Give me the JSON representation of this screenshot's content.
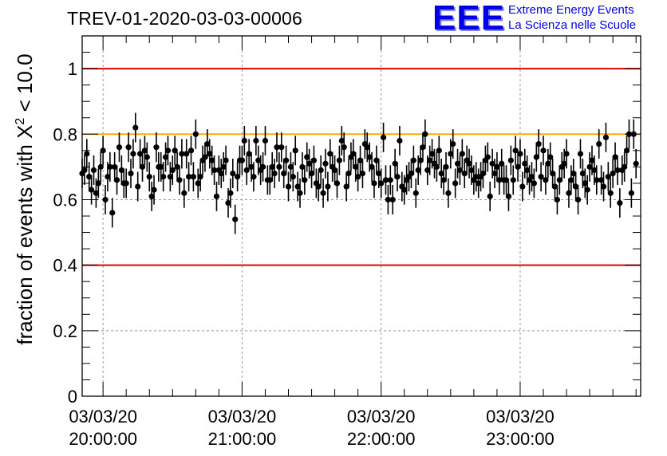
{
  "title": "TREV-01-2020-03-03-00006",
  "logo": {
    "mark": "EEE",
    "line1": "Extreme Energy Events",
    "line2": "La Scienza nelle Scuole",
    "color": "#0000e6"
  },
  "chart_data": {
    "type": "scatter",
    "ylabel_prefix": "fraction of events with ",
    "ylabel_symbol": "X",
    "ylabel_exp": "2",
    "ylabel_suffix": " < 10.0",
    "ylim": [
      0,
      1.1
    ],
    "xlim": [
      "2020-03-03 19:51:00",
      "2020-03-03 23:52:00"
    ],
    "yticks": [
      0,
      0.2,
      0.4,
      0.6,
      0.8,
      1
    ],
    "ytick_labels": [
      "0",
      "0.2",
      "0.4",
      "0.6",
      "0.8",
      "1"
    ],
    "xticks": [
      {
        "date": "03/03/20",
        "time": "20:00:00"
      },
      {
        "date": "03/03/20",
        "time": "21:00:00"
      },
      {
        "date": "03/03/20",
        "time": "22:00:00"
      },
      {
        "date": "03/03/20",
        "time": "23:00:00"
      }
    ],
    "grid": true,
    "reference_lines": [
      {
        "y": 1.0,
        "color": "#e00000"
      },
      {
        "y": 0.8,
        "color": "#ffaa00"
      },
      {
        "y": 0.4,
        "color": "#e00000"
      }
    ],
    "series": [
      {
        "marker_color": "#000000",
        "x_start": "2020-03-03 19:51:00",
        "x_step_seconds": 60,
        "y": [
          0.68,
          0.69,
          0.74,
          0.67,
          0.63,
          0.69,
          0.62,
          0.65,
          0.7,
          0.75,
          0.6,
          0.67,
          0.7,
          0.56,
          0.7,
          0.66,
          0.76,
          0.69,
          0.65,
          0.65,
          0.76,
          0.68,
          0.74,
          0.82,
          0.64,
          0.74,
          0.7,
          0.75,
          0.73,
          0.67,
          0.61,
          0.63,
          0.76,
          0.7,
          0.7,
          0.67,
          0.73,
          0.75,
          0.67,
          0.69,
          0.75,
          0.7,
          0.66,
          0.74,
          0.62,
          0.74,
          0.67,
          0.75,
          0.67,
          0.8,
          0.65,
          0.67,
          0.72,
          0.73,
          0.77,
          0.74,
          0.72,
          0.69,
          0.61,
          0.69,
          0.68,
          0.7,
          0.72,
          0.59,
          0.62,
          0.68,
          0.54,
          0.67,
          0.72,
          0.72,
          0.78,
          0.69,
          0.74,
          0.7,
          0.67,
          0.78,
          0.72,
          0.69,
          0.7,
          0.78,
          0.66,
          0.66,
          0.7,
          0.68,
          0.76,
          0.7,
          0.76,
          0.68,
          0.72,
          0.64,
          0.7,
          0.67,
          0.75,
          0.64,
          0.62,
          0.7,
          0.66,
          0.73,
          0.71,
          0.68,
          0.72,
          0.65,
          0.64,
          0.69,
          0.62,
          0.71,
          0.64,
          0.74,
          0.7,
          0.69,
          0.65,
          0.72,
          0.78,
          0.76,
          0.64,
          0.68,
          0.73,
          0.74,
          0.7,
          0.67,
          0.72,
          0.68,
          0.77,
          0.76,
          0.73,
          0.7,
          0.65,
          0.72,
          0.68,
          0.65,
          0.79,
          0.66,
          0.6,
          0.66,
          0.6,
          0.71,
          0.67,
          0.78,
          0.64,
          0.63,
          0.66,
          0.67,
          0.68,
          0.72,
          0.62,
          0.69,
          0.72,
          0.76,
          0.8,
          0.69,
          0.72,
          0.74,
          0.71,
          0.7,
          0.75,
          0.68,
          0.66,
          0.7,
          0.62,
          0.74,
          0.77,
          0.65,
          0.71,
          0.69,
          0.74,
          0.68,
          0.72,
          0.71,
          0.69,
          0.66,
          0.67,
          0.65,
          0.67,
          0.68,
          0.72,
          0.73,
          0.61,
          0.71,
          0.68,
          0.7,
          0.66,
          0.71,
          0.66,
          0.66,
          0.61,
          0.72,
          0.66,
          0.75,
          0.7,
          0.74,
          0.64,
          0.71,
          0.69,
          0.66,
          0.67,
          0.65,
          0.73,
          0.77,
          0.67,
          0.75,
          0.66,
          0.71,
          0.73,
          0.68,
          0.64,
          0.6,
          0.66,
          0.7,
          0.71,
          0.74,
          0.62,
          0.66,
          0.68,
          0.64,
          0.6,
          0.74,
          0.68,
          0.65,
          0.63,
          0.7,
          0.72,
          0.69,
          0.66,
          0.77,
          0.66,
          0.64,
          0.79,
          0.67,
          0.62,
          0.68,
          0.73,
          0.69,
          0.59,
          0.69,
          0.7,
          0.75,
          0.8,
          0.62,
          0.8,
          0.71
        ],
        "yerr": 0.045
      }
    ]
  }
}
